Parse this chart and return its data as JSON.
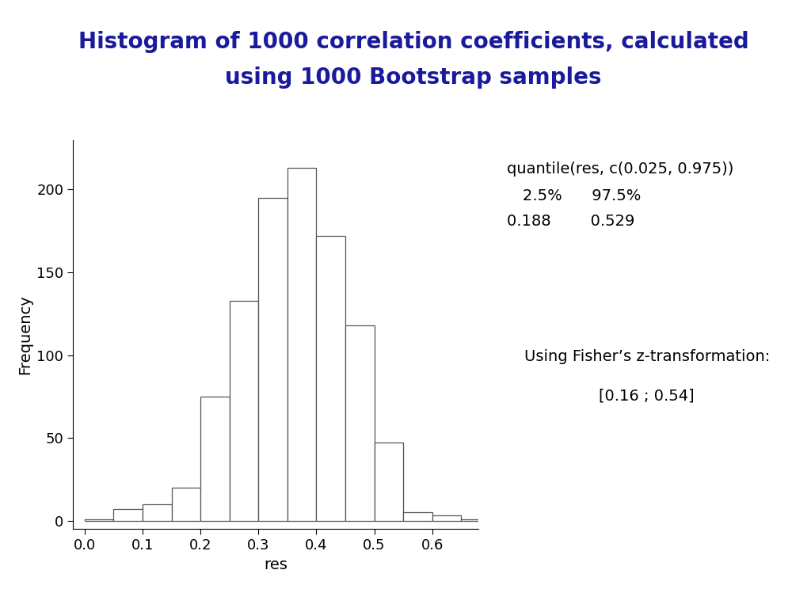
{
  "title_line1": "Histogram of 1000 correlation coefficients, calculated",
  "title_line2": "using 1000 Bootstrap samples",
  "title_bg_color": "#aadde6",
  "title_text_color": "#1a1a9c",
  "xlabel": "res",
  "ylabel": "Frequency",
  "xlim": [
    -0.02,
    0.68
  ],
  "ylim": [
    -5,
    230
  ],
  "yticks": [
    0,
    50,
    100,
    150,
    200
  ],
  "xticks": [
    0.0,
    0.1,
    0.2,
    0.3,
    0.4,
    0.5,
    0.6
  ],
  "bar_edges": [
    0.0,
    0.05,
    0.1,
    0.15,
    0.2,
    0.25,
    0.3,
    0.35,
    0.4,
    0.45,
    0.5,
    0.55,
    0.6,
    0.65,
    0.7
  ],
  "bar_heights": [
    1,
    7,
    10,
    20,
    75,
    133,
    195,
    213,
    172,
    118,
    47,
    5,
    3,
    1
  ],
  "bar_facecolor": "#ffffff",
  "bar_edgecolor": "#555555",
  "fisher_box_bg": "#eeff99",
  "fisher_box_edge": "#999999",
  "bg_color": "#ffffff",
  "page_bg": "#ffffff"
}
